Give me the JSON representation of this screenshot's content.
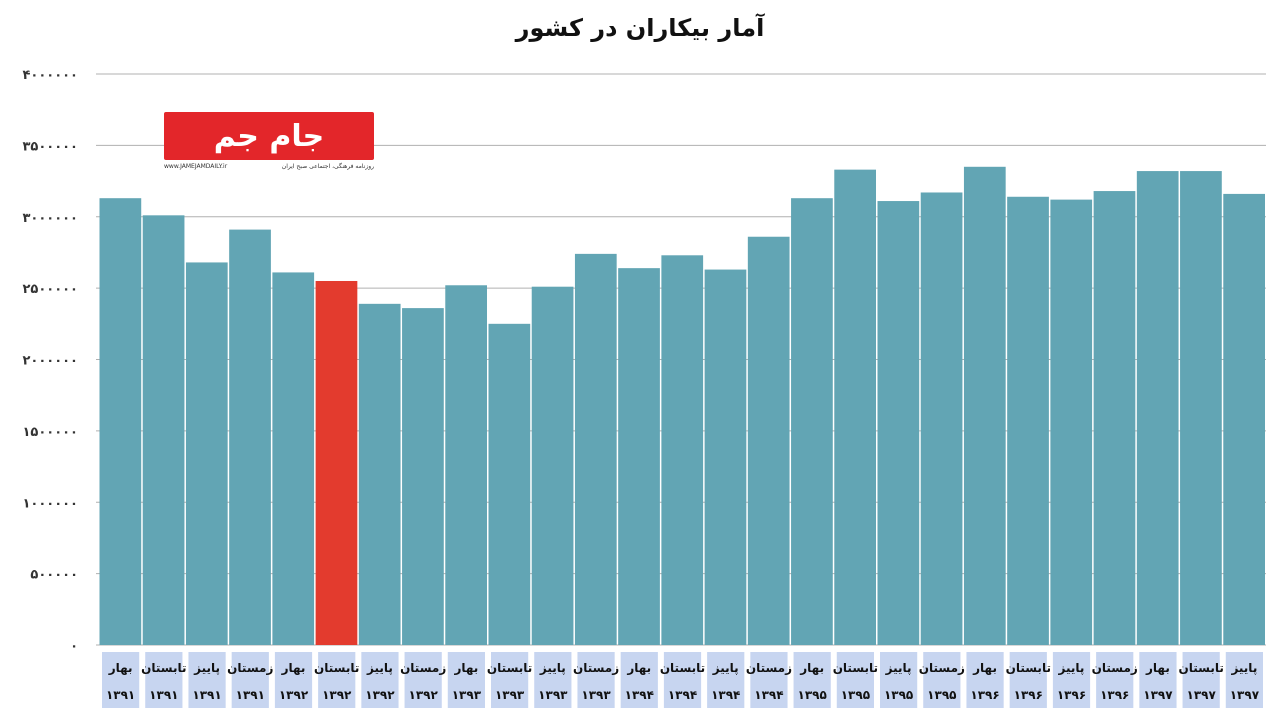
{
  "chart_data": {
    "type": "bar",
    "title": "آمار بیکاران در کشور",
    "yticks": [
      "۴۰۰۰۰۰۰",
      "۳۵۰۰۰۰۰",
      "۳۰۰۰۰۰۰",
      "۲۵۰۰۰۰۰",
      "۲۰۰۰۰۰۰",
      "۱۵۰۰۰۰۰",
      "۱۰۰۰۰۰۰",
      "۵۰۰۰۰۰",
      "۰"
    ],
    "ylim": [
      0,
      4000000
    ],
    "grid": true,
    "categories": [
      {
        "season": "بهار",
        "year": "۱۳۹۱"
      },
      {
        "season": "تابستان",
        "year": "۱۳۹۱"
      },
      {
        "season": "پاییز",
        "year": "۱۳۹۱"
      },
      {
        "season": "زمستان",
        "year": "۱۳۹۱"
      },
      {
        "season": "بهار",
        "year": "۱۳۹۲"
      },
      {
        "season": "تابستان",
        "year": "۱۳۹۲"
      },
      {
        "season": "پاییز",
        "year": "۱۳۹۲"
      },
      {
        "season": "زمستان",
        "year": "۱۳۹۲"
      },
      {
        "season": "بهار",
        "year": "۱۳۹۳"
      },
      {
        "season": "تابستان",
        "year": "۱۳۹۳"
      },
      {
        "season": "پاییز",
        "year": "۱۳۹۳"
      },
      {
        "season": "زمستان",
        "year": "۱۳۹۳"
      },
      {
        "season": "بهار",
        "year": "۱۳۹۴"
      },
      {
        "season": "تابستان",
        "year": "۱۳۹۴"
      },
      {
        "season": "پاییز",
        "year": "۱۳۹۴"
      },
      {
        "season": "زمستان",
        "year": "۱۳۹۴"
      },
      {
        "season": "بهار",
        "year": "۱۳۹۵"
      },
      {
        "season": "تابستان",
        "year": "۱۳۹۵"
      },
      {
        "season": "پاییز",
        "year": "۱۳۹۵"
      },
      {
        "season": "زمستان",
        "year": "۱۳۹۵"
      },
      {
        "season": "بهار",
        "year": "۱۳۹۶"
      },
      {
        "season": "تابستان",
        "year": "۱۳۹۶"
      },
      {
        "season": "پاییز",
        "year": "۱۳۹۶"
      },
      {
        "season": "زمستان",
        "year": "۱۳۹۶"
      },
      {
        "season": "بهار",
        "year": "۱۳۹۷"
      },
      {
        "season": "تابستان",
        "year": "۱۳۹۷"
      },
      {
        "season": "پاییز",
        "year": "۱۳۹۷"
      }
    ],
    "values": [
      3130000,
      3010000,
      2680000,
      2910000,
      2610000,
      2550000,
      2390000,
      2360000,
      2520000,
      2250000,
      2510000,
      2740000,
      2640000,
      2730000,
      2630000,
      2860000,
      3130000,
      3330000,
      3110000,
      3170000,
      3350000,
      3140000,
      3120000,
      3180000,
      3320000,
      3320000,
      3160000
    ],
    "highlight_index": 5,
    "colors": {
      "bar": "#62a5b4",
      "highlight": "#e33b2e",
      "grid": "#b0b0b0",
      "label_bg": "#c7d5f0"
    }
  },
  "logo": {
    "text": "جام جم",
    "site": "www.JAMEJAMDAILY.ir",
    "tagline": "روزنامه فرهنگی، اجتماعی صبح ایران"
  }
}
